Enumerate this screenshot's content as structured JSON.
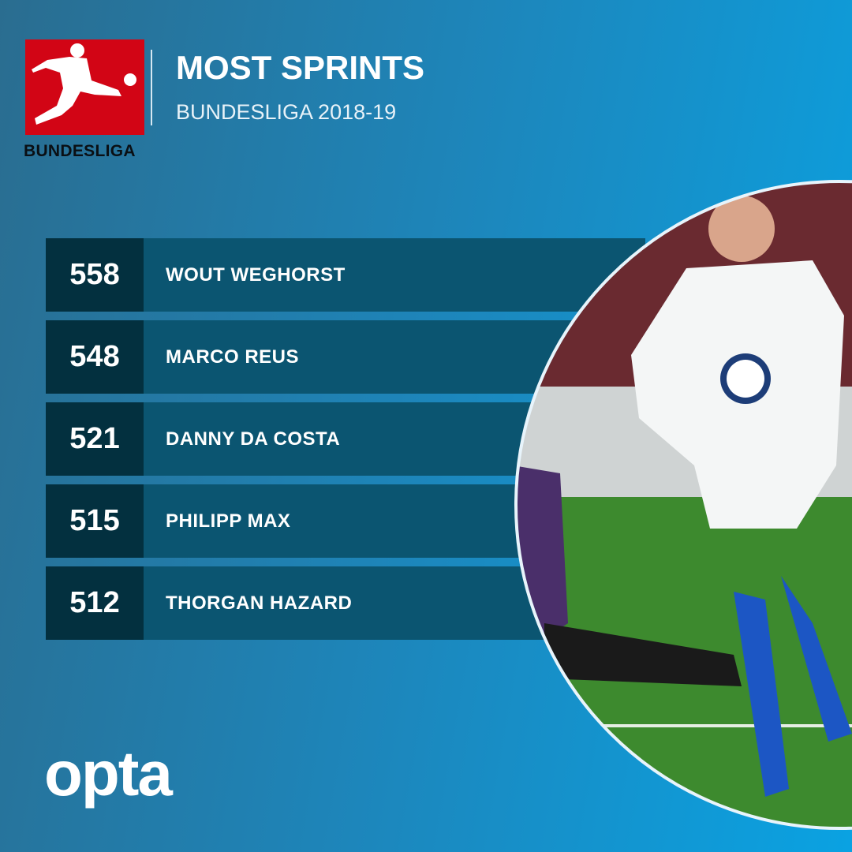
{
  "header": {
    "logo_text": "BUNDESLIGA",
    "title": "MOST SPRINTS",
    "subtitle": "BUNDESLIGA 2018-19"
  },
  "rankings": [
    {
      "value": "558",
      "player": "WOUT WEGHORST"
    },
    {
      "value": "548",
      "player": "MARCO REUS"
    },
    {
      "value": "521",
      "player": "DANNY DA COSTA"
    },
    {
      "value": "515",
      "player": "PHILIPP MAX"
    },
    {
      "value": "512",
      "player": "THORGAN HAZARD"
    }
  ],
  "footer": {
    "brand": "opta"
  },
  "colors": {
    "logo_red": "#d20515",
    "number_box": "#03303f",
    "name_bar": "#0b5571"
  }
}
